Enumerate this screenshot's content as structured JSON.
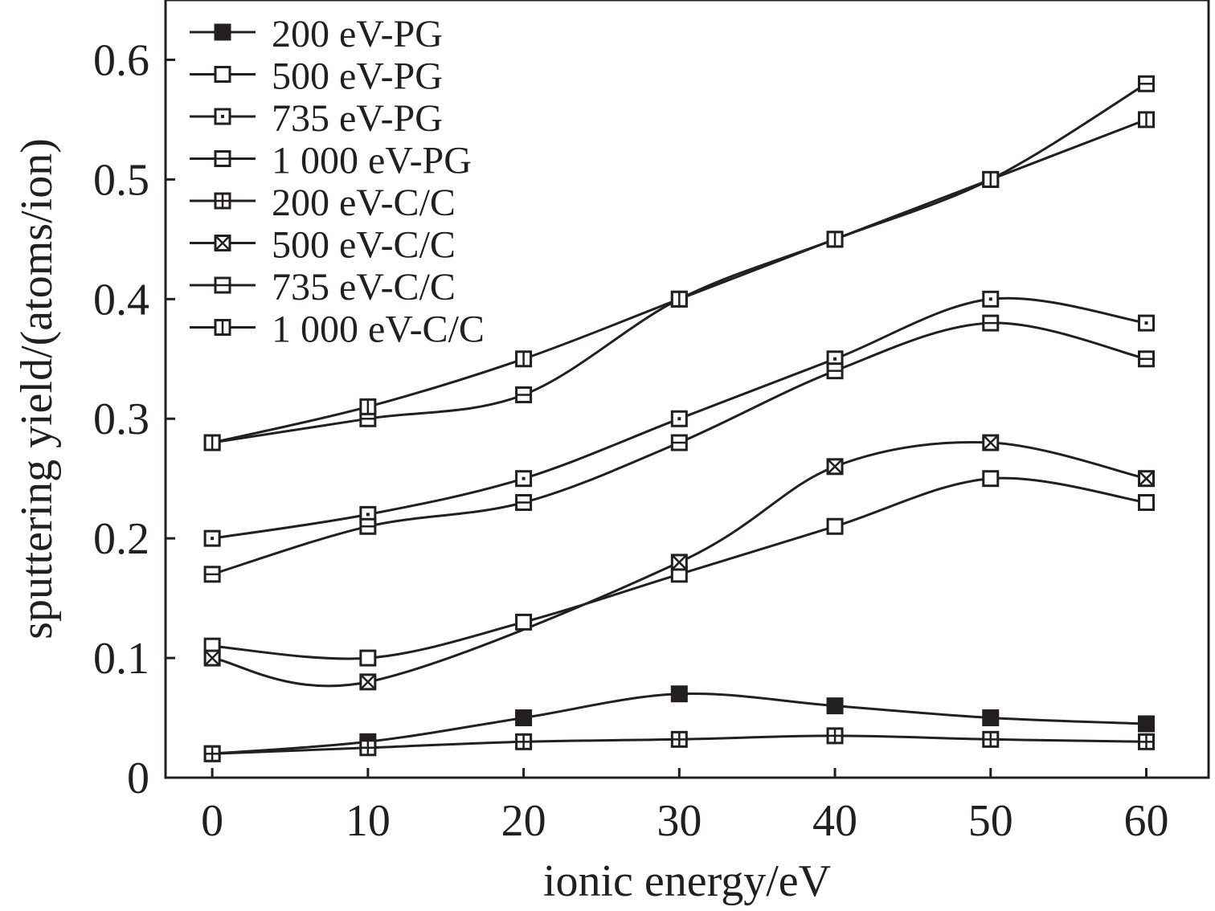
{
  "chart_data": {
    "type": "line",
    "title": "",
    "xlabel": "ionic energy/eV",
    "ylabel": "sputtering yield/(atoms/ion)",
    "xlim": [
      -3,
      64
    ],
    "ylim": [
      0,
      0.65
    ],
    "x_ticks": [
      0,
      10,
      20,
      30,
      40,
      50,
      60
    ],
    "x_tick_labels": [
      "0",
      "10",
      "20",
      "30",
      "40",
      "50",
      "60"
    ],
    "y_ticks": [
      0,
      0.1,
      0.2,
      0.3,
      0.4,
      0.5,
      0.6
    ],
    "y_tick_labels": [
      "0",
      "0.1",
      "0.2",
      "0.3",
      "0.4",
      "0.5",
      "0.6"
    ],
    "grid": false,
    "legend_position": "top-left",
    "line_color": "#231f20",
    "series": [
      {
        "name": "200 eV-PG",
        "marker": "filled-square",
        "x": [
          0,
          10,
          20,
          30,
          40,
          50,
          60
        ],
        "values": [
          0.02,
          0.03,
          0.05,
          0.07,
          0.06,
          0.05,
          0.045
        ]
      },
      {
        "name": "500 eV-PG",
        "marker": "open-square",
        "x": [
          0,
          10,
          20,
          30,
          40,
          50,
          60
        ],
        "values": [
          0.11,
          0.1,
          0.13,
          0.17,
          0.21,
          0.25,
          0.23
        ]
      },
      {
        "name": "735 eV-PG",
        "marker": "dot-square",
        "x": [
          0,
          10,
          20,
          30,
          40,
          50,
          60
        ],
        "values": [
          0.2,
          0.22,
          0.25,
          0.3,
          0.35,
          0.4,
          0.38
        ]
      },
      {
        "name": "1 000 eV-PG",
        "marker": "hline-square",
        "x": [
          0,
          10,
          20,
          30,
          40,
          50,
          60
        ],
        "values": [
          0.17,
          0.21,
          0.23,
          0.28,
          0.34,
          0.38,
          0.35
        ]
      },
      {
        "name": "200 eV-C/C",
        "marker": "plus-square",
        "x": [
          0,
          10,
          20,
          30,
          40,
          50,
          60
        ],
        "values": [
          0.02,
          0.025,
          0.03,
          0.032,
          0.035,
          0.032,
          0.03
        ]
      },
      {
        "name": "500 eV-C/C",
        "marker": "x-square",
        "x": [
          0,
          10,
          30,
          40,
          50,
          60
        ],
        "values": [
          0.1,
          0.08,
          0.18,
          0.26,
          0.28,
          0.25
        ]
      },
      {
        "name": "735 eV-C/C",
        "marker": "hline-square",
        "x": [
          0,
          10,
          20,
          30,
          40,
          50,
          60
        ],
        "values": [
          0.28,
          0.3,
          0.32,
          0.4,
          0.45,
          0.5,
          0.58
        ]
      },
      {
        "name": "1 000 eV-C/C",
        "marker": "vline-square",
        "x": [
          0,
          10,
          20,
          30,
          40,
          50,
          60
        ],
        "values": [
          0.28,
          0.31,
          0.35,
          0.4,
          0.45,
          0.5,
          0.55
        ]
      }
    ]
  }
}
